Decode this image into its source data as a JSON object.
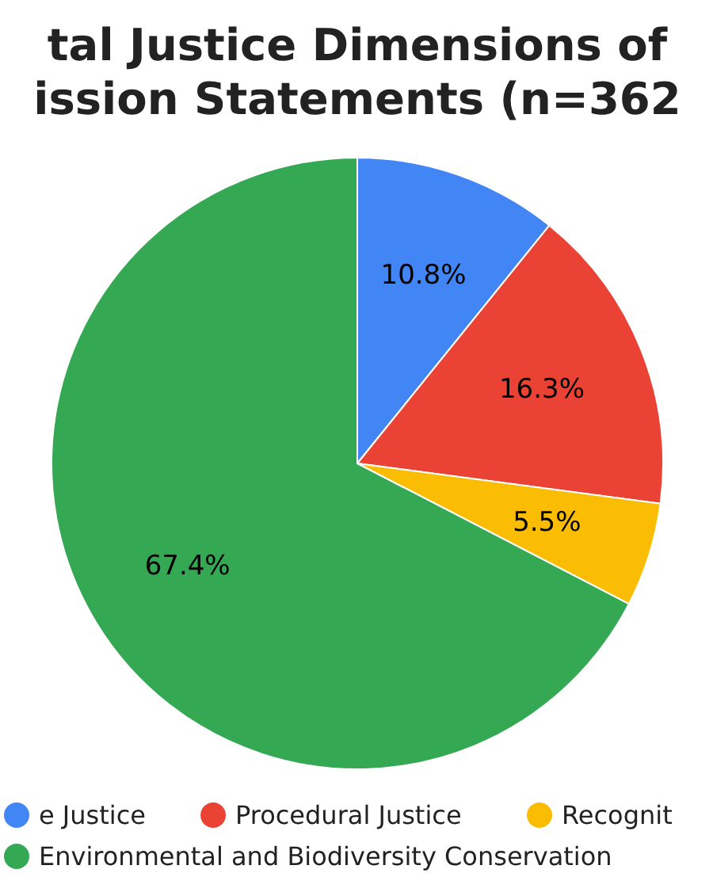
{
  "chart_data": {
    "type": "pie",
    "title": "tal Justice Dimensions of\nission Statements (n=362",
    "categories": [
      "e Justice",
      "Procedural Justice",
      "Recognit",
      "Environmental and Biodiversity Conservation"
    ],
    "values": [
      10.8,
      16.3,
      5.5,
      67.4
    ],
    "colors": [
      "#4285f4",
      "#ea4335",
      "#fbbc04",
      "#34a853"
    ],
    "value_labels": [
      "10.8%",
      "16.3%",
      "5.5%",
      "67.4%"
    ],
    "legend": "bottom"
  }
}
